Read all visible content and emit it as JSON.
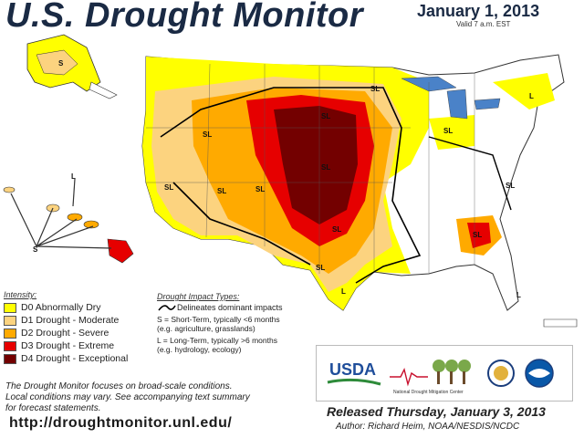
{
  "header": {
    "title": "U.S. Drought Monitor",
    "date": "January 1, 2013",
    "valid": "Valid 7 a.m. EST"
  },
  "legend": {
    "title": "Intensity:",
    "items": [
      {
        "label": "D0 Abnormally Dry",
        "color": "#ffff00"
      },
      {
        "label": "D1 Drought - Moderate",
        "color": "#fcd37f"
      },
      {
        "label": "D2 Drought - Severe",
        "color": "#ffaa00"
      },
      {
        "label": "D3 Drought - Extreme",
        "color": "#e60000"
      },
      {
        "label": "D4 Drought - Exceptional",
        "color": "#730000"
      }
    ]
  },
  "impact": {
    "title": "Drought Impact Types:",
    "line_label": "Delineates dominant impacts",
    "short_term": "S = Short-Term, typically <6 months",
    "short_term_eg": "(e.g. agriculture, grasslands)",
    "long_term": "L = Long-Term, typically >6 months",
    "long_term_eg": "(e.g. hydrology, ecology)"
  },
  "footnote": [
    "The Drought Monitor focuses on broad-scale conditions.",
    "Local conditions may vary. See accompanying text summary",
    "for forecast statements."
  ],
  "url": "http://droughtmonitor.unl.edu/",
  "released": "Released Thursday, January 3, 2013",
  "author": "Author: Richard Heim, NOAA/NESDIS/NCDC",
  "logos": {
    "usda": "USDA",
    "ndmc": "National Drought Mitigation Center",
    "usda_color": "#1f4e9b",
    "noaa_color": "#0a58a8"
  },
  "map_labels": {
    "sl": "SL",
    "s": "S",
    "l": "L"
  }
}
